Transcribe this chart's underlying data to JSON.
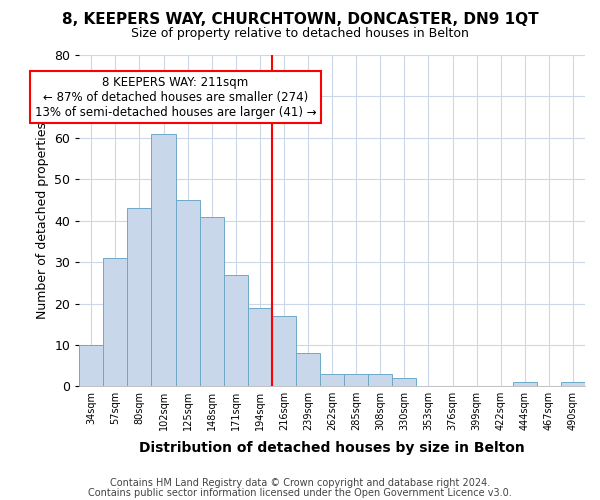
{
  "title1": "8, KEEPERS WAY, CHURCHTOWN, DONCASTER, DN9 1QT",
  "title2": "Size of property relative to detached houses in Belton",
  "xlabel": "Distribution of detached houses by size in Belton",
  "ylabel": "Number of detached properties",
  "footnote1": "Contains HM Land Registry data © Crown copyright and database right 2024.",
  "footnote2": "Contains public sector information licensed under the Open Government Licence v3.0.",
  "bin_labels": [
    "34sqm",
    "57sqm",
    "80sqm",
    "102sqm",
    "125sqm",
    "148sqm",
    "171sqm",
    "194sqm",
    "216sqm",
    "239sqm",
    "262sqm",
    "285sqm",
    "308sqm",
    "330sqm",
    "353sqm",
    "376sqm",
    "399sqm",
    "422sqm",
    "444sqm",
    "467sqm",
    "490sqm"
  ],
  "counts": [
    10,
    31,
    43,
    61,
    45,
    41,
    27,
    19,
    17,
    8,
    3,
    3,
    3,
    2,
    0,
    0,
    0,
    0,
    1,
    0,
    1
  ],
  "bar_color": "#c8d8ea",
  "bar_edge_color": "#6fa8c8",
  "marker_bin_index": 8,
  "marker_color": "red",
  "annotation_text": "8 KEEPERS WAY: 211sqm\n← 87% of detached houses are smaller (274)\n13% of semi-detached houses are larger (41) →",
  "annotation_box_color": "white",
  "annotation_box_edgecolor": "red",
  "ylim": [
    0,
    80
  ],
  "yticks": [
    0,
    10,
    20,
    30,
    40,
    50,
    60,
    70,
    80
  ],
  "title1_fontsize": 11,
  "title2_fontsize": 9,
  "xlabel_fontsize": 10,
  "ylabel_fontsize": 9,
  "annotation_fontsize": 8.5,
  "footnote_fontsize": 7
}
